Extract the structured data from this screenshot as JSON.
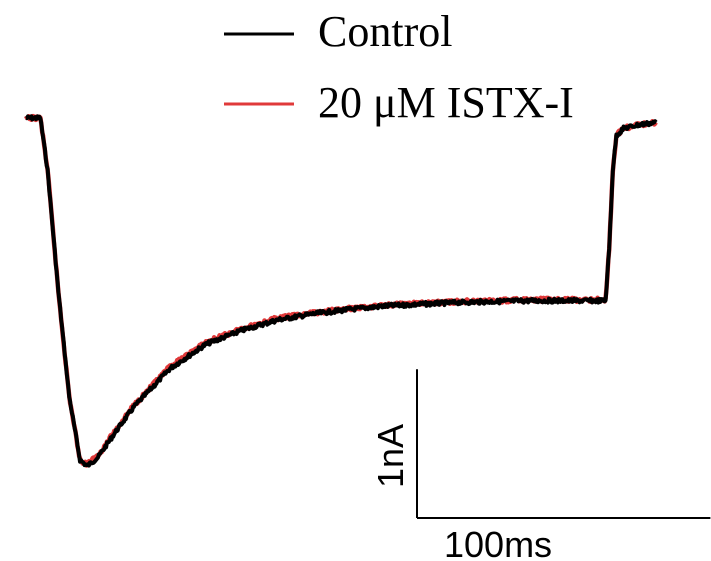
{
  "chart_data": {
    "type": "line",
    "title": "",
    "xlabel": "",
    "ylabel": "",
    "grid": false,
    "legend_position": "top",
    "x_unit": "ms",
    "y_unit": "nA",
    "series": [
      {
        "name": "Control",
        "color": "#000000",
        "points": [
          [
            0,
            0.0
          ],
          [
            8,
            0.0
          ],
          [
            12,
            -0.6
          ],
          [
            18,
            -2.0
          ],
          [
            24,
            -3.2
          ],
          [
            30,
            -3.93
          ],
          [
            34,
            -4.0
          ],
          [
            40,
            -3.9
          ],
          [
            50,
            -3.6
          ],
          [
            60,
            -3.32
          ],
          [
            80,
            -2.88
          ],
          [
            100,
            -2.6
          ],
          [
            120,
            -2.44
          ],
          [
            140,
            -2.32
          ],
          [
            160,
            -2.25
          ],
          [
            180,
            -2.2
          ],
          [
            200,
            -2.16
          ],
          [
            220,
            -2.14
          ],
          [
            240,
            -2.12
          ],
          [
            260,
            -2.11
          ],
          [
            280,
            -2.1
          ],
          [
            300,
            -2.1
          ],
          [
            322,
            -2.1
          ],
          [
            324,
            -1.5
          ],
          [
            326,
            -0.6
          ],
          [
            328,
            -0.2
          ],
          [
            332,
            -0.12
          ],
          [
            340,
            -0.08
          ],
          [
            350,
            -0.05
          ]
        ]
      },
      {
        "name": "20 μM ISTX-I",
        "color": "#e0393a",
        "points": [
          [
            0,
            0.0
          ],
          [
            8,
            0.0
          ],
          [
            12,
            -0.6
          ],
          [
            18,
            -2.0
          ],
          [
            24,
            -3.2
          ],
          [
            30,
            -3.93
          ],
          [
            34,
            -3.98
          ],
          [
            40,
            -3.88
          ],
          [
            50,
            -3.58
          ],
          [
            60,
            -3.3
          ],
          [
            80,
            -2.86
          ],
          [
            100,
            -2.58
          ],
          [
            120,
            -2.42
          ],
          [
            140,
            -2.3
          ],
          [
            160,
            -2.24
          ],
          [
            180,
            -2.19
          ],
          [
            200,
            -2.15
          ],
          [
            220,
            -2.13
          ],
          [
            240,
            -2.11
          ],
          [
            260,
            -2.1
          ],
          [
            280,
            -2.09
          ],
          [
            300,
            -2.09
          ],
          [
            322,
            -2.09
          ],
          [
            324,
            -1.5
          ],
          [
            326,
            -0.6
          ],
          [
            328,
            -0.2
          ],
          [
            332,
            -0.12
          ],
          [
            340,
            -0.08
          ],
          [
            350,
            -0.05
          ]
        ]
      }
    ],
    "scale_bar": {
      "x_value": 100,
      "x_label": "100ms",
      "y_value": 1,
      "y_label": "1nA"
    }
  }
}
